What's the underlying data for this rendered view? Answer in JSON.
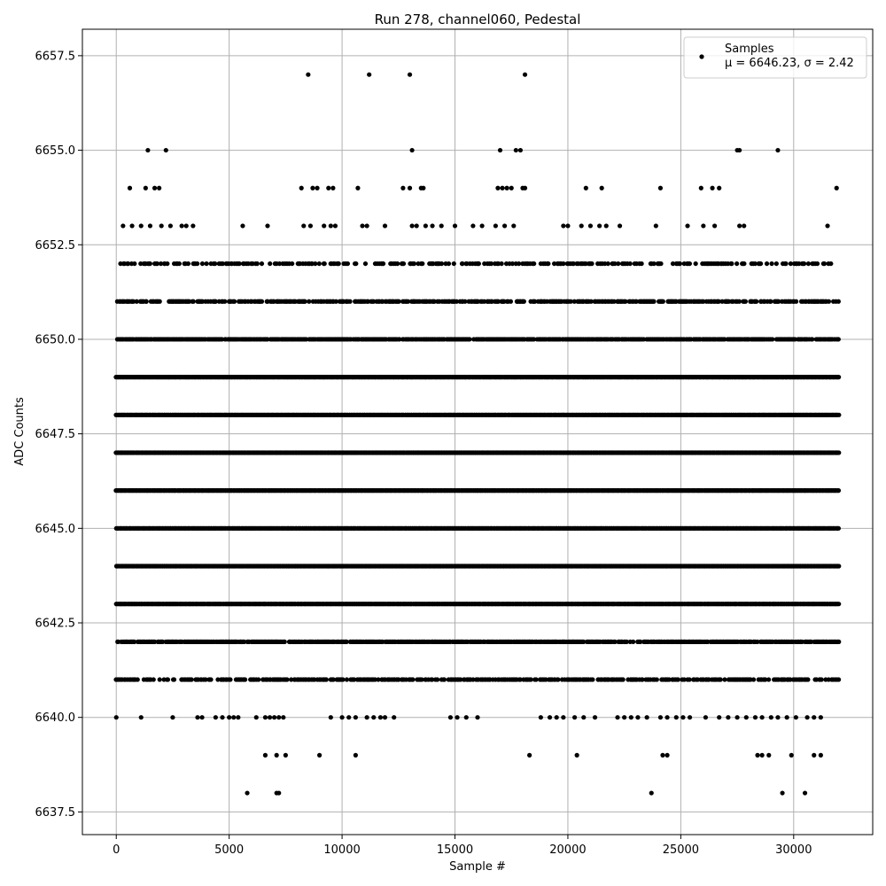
{
  "chart_data": {
    "type": "scatter",
    "title": "Run 278, channel060, Pedestal",
    "xlabel": "Sample #",
    "ylabel": "ADC Counts",
    "xlim": [
      -1500,
      33500
    ],
    "ylim": [
      6636.9,
      6658.2
    ],
    "xticks": [
      0,
      5000,
      10000,
      15000,
      20000,
      25000,
      30000
    ],
    "yticks": [
      6637.5,
      6640.0,
      6642.5,
      6645.0,
      6647.5,
      6650.0,
      6652.5,
      6655.0,
      6657.5
    ],
    "ytick_labels": [
      "6637.5",
      "6640.0",
      "6642.5",
      "6645.0",
      "6647.5",
      "6650.0",
      "6652.5",
      "6655.0",
      "6657.5"
    ],
    "grid": true,
    "legend": {
      "placement": "upper-right",
      "entries": [
        "Samples",
        "μ = 6646.23, σ = 2.42"
      ]
    },
    "colors": {
      "points": "#000000",
      "grid": "#b0b0b0"
    },
    "series": [
      {
        "name": "Samples",
        "sample_range": [
          0,
          32000
        ],
        "dense_levels": [
          6641,
          6642,
          6643,
          6644,
          6645,
          6646,
          6647,
          6648,
          6649,
          6650,
          6651,
          6652
        ],
        "points": [
          {
            "x": 8500,
            "y": 6657
          },
          {
            "x": 11200,
            "y": 6657
          },
          {
            "x": 13000,
            "y": 6657
          },
          {
            "x": 18100,
            "y": 6657
          },
          {
            "x": 1400,
            "y": 6655
          },
          {
            "x": 2200,
            "y": 6655
          },
          {
            "x": 13100,
            "y": 6655
          },
          {
            "x": 17000,
            "y": 6655
          },
          {
            "x": 17700,
            "y": 6655
          },
          {
            "x": 17900,
            "y": 6655
          },
          {
            "x": 27500,
            "y": 6655
          },
          {
            "x": 27600,
            "y": 6655
          },
          {
            "x": 29300,
            "y": 6655
          },
          {
            "x": 600,
            "y": 6654
          },
          {
            "x": 1300,
            "y": 6654
          },
          {
            "x": 1700,
            "y": 6654
          },
          {
            "x": 1900,
            "y": 6654
          },
          {
            "x": 8200,
            "y": 6654
          },
          {
            "x": 8700,
            "y": 6654
          },
          {
            "x": 8900,
            "y": 6654
          },
          {
            "x": 9400,
            "y": 6654
          },
          {
            "x": 9600,
            "y": 6654
          },
          {
            "x": 10700,
            "y": 6654
          },
          {
            "x": 12700,
            "y": 6654
          },
          {
            "x": 13000,
            "y": 6654
          },
          {
            "x": 13500,
            "y": 6654
          },
          {
            "x": 13600,
            "y": 6654
          },
          {
            "x": 16900,
            "y": 6654
          },
          {
            "x": 17100,
            "y": 6654
          },
          {
            "x": 17300,
            "y": 6654
          },
          {
            "x": 17500,
            "y": 6654
          },
          {
            "x": 18000,
            "y": 6654
          },
          {
            "x": 18100,
            "y": 6654
          },
          {
            "x": 20800,
            "y": 6654
          },
          {
            "x": 21500,
            "y": 6654
          },
          {
            "x": 24100,
            "y": 6654
          },
          {
            "x": 25900,
            "y": 6654
          },
          {
            "x": 26400,
            "y": 6654
          },
          {
            "x": 26700,
            "y": 6654
          },
          {
            "x": 31900,
            "y": 6654
          },
          {
            "x": 300,
            "y": 6653
          },
          {
            "x": 700,
            "y": 6653
          },
          {
            "x": 1100,
            "y": 6653
          },
          {
            "x": 1500,
            "y": 6653
          },
          {
            "x": 2000,
            "y": 6653
          },
          {
            "x": 2400,
            "y": 6653
          },
          {
            "x": 2900,
            "y": 6653
          },
          {
            "x": 3100,
            "y": 6653
          },
          {
            "x": 3400,
            "y": 6653
          },
          {
            "x": 5600,
            "y": 6653
          },
          {
            "x": 6700,
            "y": 6653
          },
          {
            "x": 8300,
            "y": 6653
          },
          {
            "x": 8600,
            "y": 6653
          },
          {
            "x": 9200,
            "y": 6653
          },
          {
            "x": 9500,
            "y": 6653
          },
          {
            "x": 9700,
            "y": 6653
          },
          {
            "x": 10900,
            "y": 6653
          },
          {
            "x": 11100,
            "y": 6653
          },
          {
            "x": 11900,
            "y": 6653
          },
          {
            "x": 13100,
            "y": 6653
          },
          {
            "x": 13300,
            "y": 6653
          },
          {
            "x": 13700,
            "y": 6653
          },
          {
            "x": 14000,
            "y": 6653
          },
          {
            "x": 14400,
            "y": 6653
          },
          {
            "x": 15000,
            "y": 6653
          },
          {
            "x": 15800,
            "y": 6653
          },
          {
            "x": 16200,
            "y": 6653
          },
          {
            "x": 16800,
            "y": 6653
          },
          {
            "x": 17200,
            "y": 6653
          },
          {
            "x": 17600,
            "y": 6653
          },
          {
            "x": 19800,
            "y": 6653
          },
          {
            "x": 20000,
            "y": 6653
          },
          {
            "x": 20600,
            "y": 6653
          },
          {
            "x": 21000,
            "y": 6653
          },
          {
            "x": 21400,
            "y": 6653
          },
          {
            "x": 21700,
            "y": 6653
          },
          {
            "x": 22300,
            "y": 6653
          },
          {
            "x": 23900,
            "y": 6653
          },
          {
            "x": 25300,
            "y": 6653
          },
          {
            "x": 26000,
            "y": 6653
          },
          {
            "x": 26500,
            "y": 6653
          },
          {
            "x": 27600,
            "y": 6653
          },
          {
            "x": 27800,
            "y": 6653
          },
          {
            "x": 31500,
            "y": 6653
          },
          {
            "x": 0,
            "y": 6640
          },
          {
            "x": 1100,
            "y": 6640
          },
          {
            "x": 2500,
            "y": 6640
          },
          {
            "x": 3600,
            "y": 6640
          },
          {
            "x": 3800,
            "y": 6640
          },
          {
            "x": 4400,
            "y": 6640
          },
          {
            "x": 4700,
            "y": 6640
          },
          {
            "x": 5000,
            "y": 6640
          },
          {
            "x": 5200,
            "y": 6640
          },
          {
            "x": 5400,
            "y": 6640
          },
          {
            "x": 6200,
            "y": 6640
          },
          {
            "x": 6600,
            "y": 6640
          },
          {
            "x": 6800,
            "y": 6640
          },
          {
            "x": 7000,
            "y": 6640
          },
          {
            "x": 7200,
            "y": 6640
          },
          {
            "x": 7400,
            "y": 6640
          },
          {
            "x": 9500,
            "y": 6640
          },
          {
            "x": 10000,
            "y": 6640
          },
          {
            "x": 10300,
            "y": 6640
          },
          {
            "x": 10600,
            "y": 6640
          },
          {
            "x": 11100,
            "y": 6640
          },
          {
            "x": 11400,
            "y": 6640
          },
          {
            "x": 11700,
            "y": 6640
          },
          {
            "x": 11900,
            "y": 6640
          },
          {
            "x": 12300,
            "y": 6640
          },
          {
            "x": 14800,
            "y": 6640
          },
          {
            "x": 15100,
            "y": 6640
          },
          {
            "x": 15500,
            "y": 6640
          },
          {
            "x": 16000,
            "y": 6640
          },
          {
            "x": 18800,
            "y": 6640
          },
          {
            "x": 19200,
            "y": 6640
          },
          {
            "x": 19500,
            "y": 6640
          },
          {
            "x": 19800,
            "y": 6640
          },
          {
            "x": 20300,
            "y": 6640
          },
          {
            "x": 20700,
            "y": 6640
          },
          {
            "x": 21200,
            "y": 6640
          },
          {
            "x": 22200,
            "y": 6640
          },
          {
            "x": 22500,
            "y": 6640
          },
          {
            "x": 22800,
            "y": 6640
          },
          {
            "x": 23100,
            "y": 6640
          },
          {
            "x": 23500,
            "y": 6640
          },
          {
            "x": 24100,
            "y": 6640
          },
          {
            "x": 24400,
            "y": 6640
          },
          {
            "x": 24800,
            "y": 6640
          },
          {
            "x": 25100,
            "y": 6640
          },
          {
            "x": 25400,
            "y": 6640
          },
          {
            "x": 26100,
            "y": 6640
          },
          {
            "x": 26700,
            "y": 6640
          },
          {
            "x": 27100,
            "y": 6640
          },
          {
            "x": 27500,
            "y": 6640
          },
          {
            "x": 27900,
            "y": 6640
          },
          {
            "x": 28300,
            "y": 6640
          },
          {
            "x": 28600,
            "y": 6640
          },
          {
            "x": 29000,
            "y": 6640
          },
          {
            "x": 29300,
            "y": 6640
          },
          {
            "x": 29700,
            "y": 6640
          },
          {
            "x": 30100,
            "y": 6640
          },
          {
            "x": 30600,
            "y": 6640
          },
          {
            "x": 30900,
            "y": 6640
          },
          {
            "x": 31200,
            "y": 6640
          },
          {
            "x": 6600,
            "y": 6639
          },
          {
            "x": 7100,
            "y": 6639
          },
          {
            "x": 7500,
            "y": 6639
          },
          {
            "x": 9000,
            "y": 6639
          },
          {
            "x": 10600,
            "y": 6639
          },
          {
            "x": 18300,
            "y": 6639
          },
          {
            "x": 20400,
            "y": 6639
          },
          {
            "x": 24200,
            "y": 6639
          },
          {
            "x": 24400,
            "y": 6639
          },
          {
            "x": 28400,
            "y": 6639
          },
          {
            "x": 28600,
            "y": 6639
          },
          {
            "x": 28900,
            "y": 6639
          },
          {
            "x": 29900,
            "y": 6639
          },
          {
            "x": 30900,
            "y": 6639
          },
          {
            "x": 31200,
            "y": 6639
          },
          {
            "x": 5800,
            "y": 6638
          },
          {
            "x": 7100,
            "y": 6638
          },
          {
            "x": 7200,
            "y": 6638
          },
          {
            "x": 23700,
            "y": 6638
          },
          {
            "x": 29500,
            "y": 6638
          },
          {
            "x": 30500,
            "y": 6638
          }
        ]
      }
    ]
  }
}
